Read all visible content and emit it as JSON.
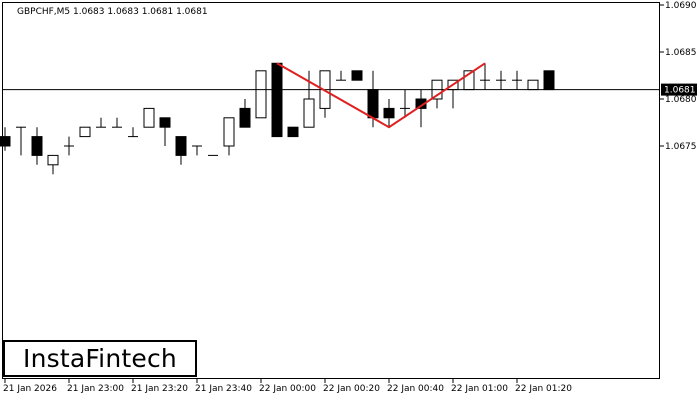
{
  "chart_data": {
    "type": "candlestick",
    "title": "GBPCHF,M5  1.0683 1.0683 1.0681 1.0681",
    "ylim": [
      1.067,
      1.069
    ],
    "y_ticks": [
      "1.0690",
      "1.0685",
      "1.0680",
      "1.0675"
    ],
    "x_ticks": [
      {
        "index": 0,
        "label": "21 Jan 2026"
      },
      {
        "index": 4,
        "label": "21 Jan 23:00"
      },
      {
        "index": 8,
        "label": "21 Jan 23:20"
      },
      {
        "index": 12,
        "label": "21 Jan 23:40"
      },
      {
        "index": 16,
        "label": "22 Jan 00:00"
      },
      {
        "index": 20,
        "label": "22 Jan 00:20"
      },
      {
        "index": 24,
        "label": "22 Jan 00:40"
      },
      {
        "index": 28,
        "label": "22 Jan 01:00"
      },
      {
        "index": 32,
        "label": "22 Jan 01:20"
      }
    ],
    "current_price": "1.0681",
    "candles": [
      {
        "o": 1.0676,
        "h": 1.0677,
        "l": 1.06745,
        "c": 1.0675
      },
      {
        "o": 1.0677,
        "h": 1.0677,
        "l": 1.0674,
        "c": 1.0677
      },
      {
        "o": 1.0676,
        "h": 1.0677,
        "l": 1.0673,
        "c": 1.0674
      },
      {
        "o": 1.0673,
        "h": 1.0674,
        "l": 1.0672,
        "c": 1.0674
      },
      {
        "o": 1.0675,
        "h": 1.0676,
        "l": 1.0674,
        "c": 1.0675
      },
      {
        "o": 1.0676,
        "h": 1.0677,
        "l": 1.0676,
        "c": 1.0677
      },
      {
        "o": 1.0677,
        "h": 1.0678,
        "l": 1.0677,
        "c": 1.0677
      },
      {
        "o": 1.0677,
        "h": 1.0678,
        "l": 1.0677,
        "c": 1.0677
      },
      {
        "o": 1.0676,
        "h": 1.0677,
        "l": 1.0676,
        "c": 1.0676
      },
      {
        "o": 1.0677,
        "h": 1.0679,
        "l": 1.0677,
        "c": 1.0679
      },
      {
        "o": 1.0678,
        "h": 1.0678,
        "l": 1.0675,
        "c": 1.0677
      },
      {
        "o": 1.0676,
        "h": 1.0676,
        "l": 1.0673,
        "c": 1.0674
      },
      {
        "o": 1.0675,
        "h": 1.0675,
        "l": 1.0674,
        "c": 1.0675
      },
      {
        "o": 1.0674,
        "h": 1.0674,
        "l": 1.0674,
        "c": 1.0674
      },
      {
        "o": 1.0675,
        "h": 1.0678,
        "l": 1.0674,
        "c": 1.0678
      },
      {
        "o": 1.0679,
        "h": 1.068,
        "l": 1.0677,
        "c": 1.0677
      },
      {
        "o": 1.0678,
        "h": 1.0683,
        "l": 1.0678,
        "c": 1.0683
      },
      {
        "o": 1.06838,
        "h": 1.06838,
        "l": 1.0676,
        "c": 1.0676
      },
      {
        "o": 1.0677,
        "h": 1.0677,
        "l": 1.0676,
        "c": 1.0676
      },
      {
        "o": 1.0677,
        "h": 1.0683,
        "l": 1.0677,
        "c": 1.068
      },
      {
        "o": 1.0679,
        "h": 1.0683,
        "l": 1.0678,
        "c": 1.0683
      },
      {
        "o": 1.0682,
        "h": 1.0683,
        "l": 1.0682,
        "c": 1.0682
      },
      {
        "o": 1.0683,
        "h": 1.0683,
        "l": 1.0682,
        "c": 1.0682
      },
      {
        "o": 1.0681,
        "h": 1.0683,
        "l": 1.0677,
        "c": 1.0678
      },
      {
        "o": 1.0679,
        "h": 1.068,
        "l": 1.0677,
        "c": 1.0678
      },
      {
        "o": 1.0679,
        "h": 1.0681,
        "l": 1.0678,
        "c": 1.0679
      },
      {
        "o": 1.068,
        "h": 1.0681,
        "l": 1.0677,
        "c": 1.0679
      },
      {
        "o": 1.068,
        "h": 1.0682,
        "l": 1.0679,
        "c": 1.0682
      },
      {
        "o": 1.0681,
        "h": 1.0682,
        "l": 1.0679,
        "c": 1.0682
      },
      {
        "o": 1.0681,
        "h": 1.0683,
        "l": 1.0681,
        "c": 1.0683
      },
      {
        "o": 1.0682,
        "h": 1.06838,
        "l": 1.0681,
        "c": 1.0682
      },
      {
        "o": 1.0682,
        "h": 1.0683,
        "l": 1.0681,
        "c": 1.0682
      },
      {
        "o": 1.0682,
        "h": 1.0683,
        "l": 1.0681,
        "c": 1.0682
      },
      {
        "o": 1.0681,
        "h": 1.0682,
        "l": 1.0681,
        "c": 1.0682
      },
      {
        "o": 1.0683,
        "h": 1.0683,
        "l": 1.0681,
        "c": 1.0681
      }
    ],
    "pattern_line": [
      {
        "index": 17,
        "price": 1.06838
      },
      {
        "index": 24,
        "price": 1.0677
      },
      {
        "index": 30,
        "price": 1.06838
      }
    ],
    "colors": {
      "up": "#ffffff",
      "down": "#000000",
      "outline": "#000000",
      "pattern": "#e02020",
      "price_line": "#000000"
    },
    "grid": false
  },
  "logo": {
    "text": "InstaFintech"
  }
}
